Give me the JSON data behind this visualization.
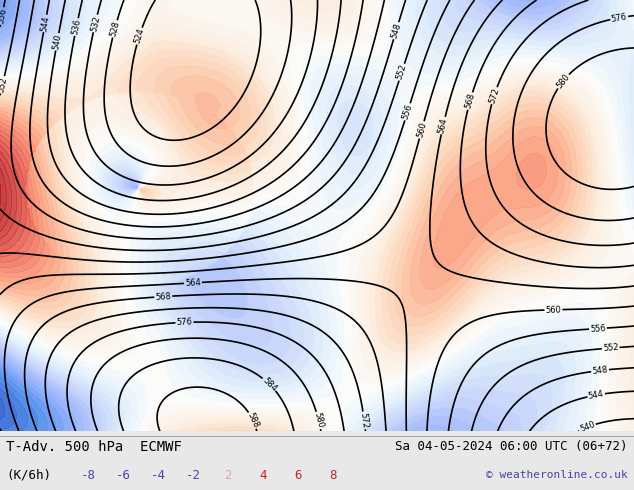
{
  "title_left": "T-Adv. 500 hPa  ECMWF",
  "title_right": "Sa 04-05-2024 06:00 UTC (06+72)",
  "unit_label": "(K/6h)",
  "colorbar_values": [
    -8,
    -6,
    -4,
    -2,
    2,
    4,
    6,
    8
  ],
  "copyright": "© weatheronline.co.uk",
  "bg_color": "#e8e8e8",
  "map_bg": "#c8e8c8",
  "figsize": [
    6.34,
    4.9
  ],
  "dpi": 100
}
